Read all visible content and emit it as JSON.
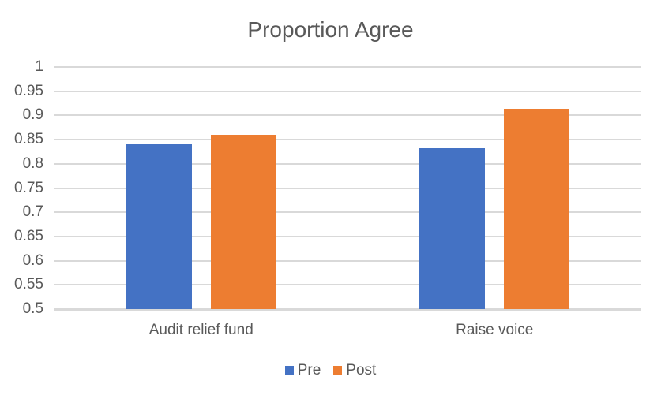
{
  "chart_data": {
    "type": "bar",
    "title": "Proportion Agree",
    "categories": [
      "Audit relief fund",
      "Raise voice"
    ],
    "series": [
      {
        "name": "Pre",
        "color": "#4472C4",
        "values": [
          0.84,
          0.833
        ]
      },
      {
        "name": "Post",
        "color": "#ED7D31",
        "values": [
          0.86,
          0.913
        ]
      }
    ],
    "xlabel": "",
    "ylabel": "",
    "ylim": [
      0.5,
      1.0
    ],
    "ytick_step": 0.05,
    "ytick_labels": [
      "1",
      "0.95",
      "0.9",
      "0.85",
      "0.8",
      "0.75",
      "0.7",
      "0.65",
      "0.6",
      "0.55",
      "0.5"
    ],
    "grid": true,
    "legend_position": "bottom"
  },
  "colors": {
    "background": "#FFFFFF",
    "text": "#595959",
    "gridline": "#D9D9D9",
    "axis_line": "#D9D9D9"
  }
}
